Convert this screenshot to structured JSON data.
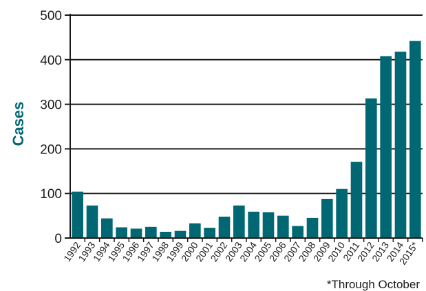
{
  "chart_data": {
    "type": "bar",
    "ylabel": "Cases",
    "xlabel": "",
    "ylim": [
      0,
      500
    ],
    "yticks": [
      0,
      100,
      200,
      300,
      400,
      500
    ],
    "grid": true,
    "bar_color": "#006773",
    "ylabel_color": "#006773",
    "footnote": "*Through October",
    "categories": [
      "1992",
      "1993",
      "1994",
      "1995",
      "1996",
      "1997",
      "1998",
      "1999",
      "2000",
      "2001",
      "2002",
      "2003",
      "2004",
      "2005",
      "2006",
      "2007",
      "2008",
      "2009",
      "2010",
      "2011",
      "2012",
      "2013",
      "2014",
      "2015*"
    ],
    "values": [
      104,
      73,
      44,
      24,
      21,
      25,
      14,
      16,
      33,
      23,
      48,
      73,
      59,
      58,
      50,
      27,
      45,
      88,
      110,
      171,
      313,
      408,
      418,
      442
    ]
  }
}
